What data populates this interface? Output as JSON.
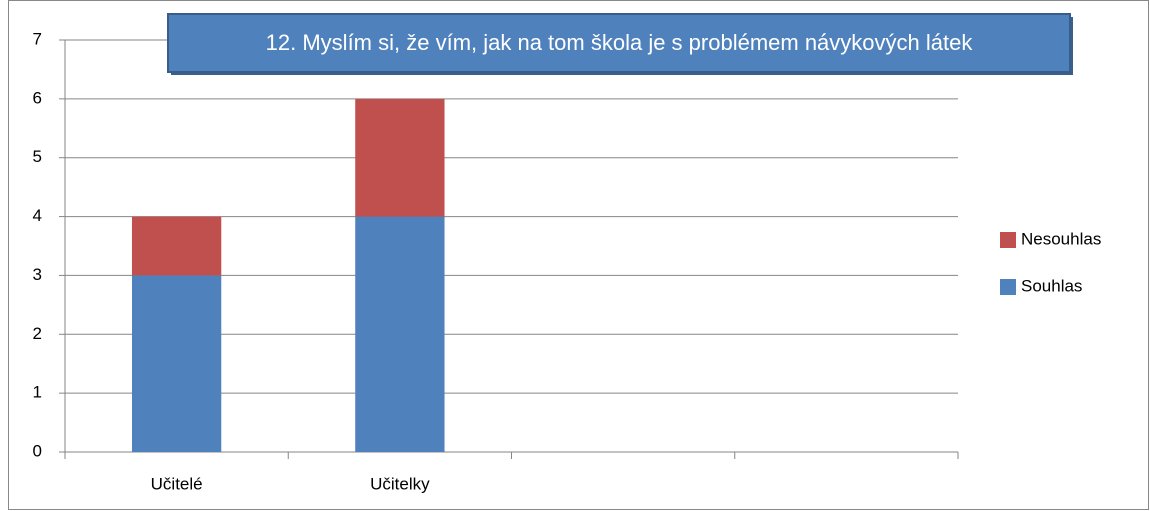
{
  "chart_data": {
    "type": "stacked_bar",
    "title": "12. Myslím si, že vím, jak na tom škola je s problémem návykových látek",
    "categories": [
      "Učitelé",
      "Učitelky",
      null,
      null
    ],
    "series": [
      {
        "name": "Souhlas",
        "color": "#4f81bd",
        "values": [
          3,
          4,
          null,
          null
        ]
      },
      {
        "name": "Nesouhlas",
        "color": "#c0504d",
        "values": [
          1,
          2,
          null,
          null
        ]
      }
    ],
    "ylim": [
      0,
      7
    ],
    "yticks": [
      0,
      1,
      2,
      3,
      4,
      5,
      6,
      7
    ],
    "grid": true,
    "legend": "right"
  }
}
